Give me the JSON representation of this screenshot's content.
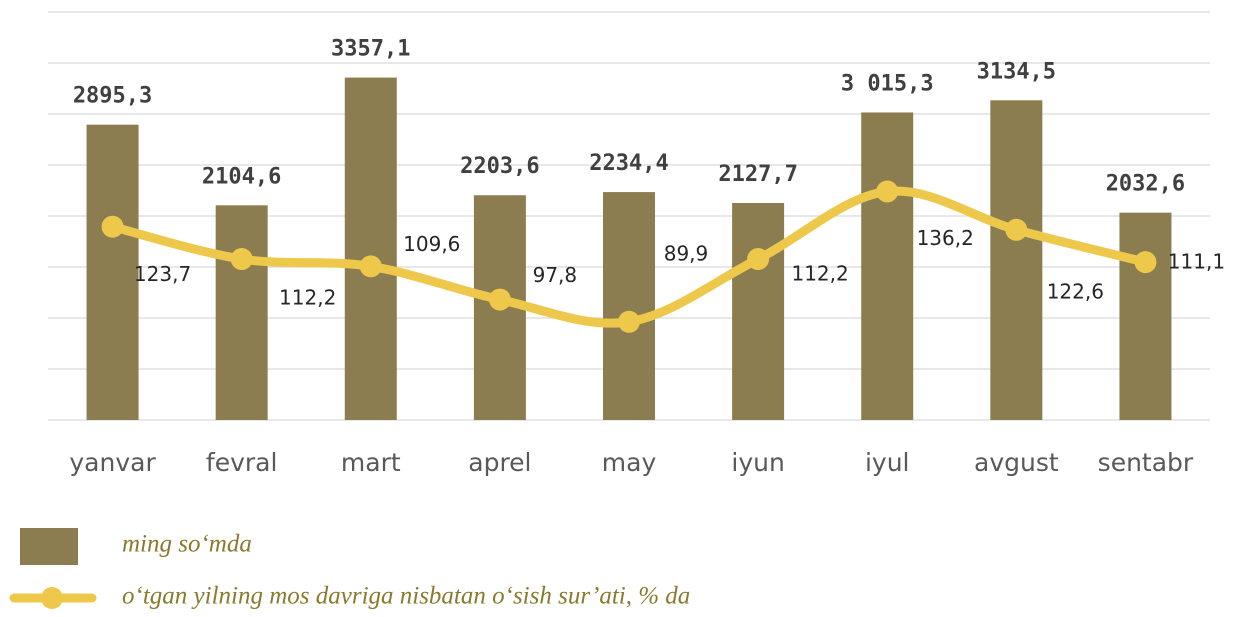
{
  "chart_data": {
    "type": "bar_line",
    "categories": [
      "yanvar",
      "fevral",
      "mart",
      "aprel",
      "may",
      "iyun",
      "iyul",
      "avgust",
      "sentabr"
    ],
    "series": [
      {
        "name": "ming so‘mda",
        "type": "bar",
        "color": "#8b7d50",
        "values": [
          2895.3,
          2104.6,
          3357.1,
          2203.6,
          2234.4,
          2127.7,
          3015.3,
          3134.5,
          2032.6
        ],
        "value_labels": [
          "2895,3",
          "2104,6",
          "3357,1",
          "2203,6",
          "2234,4",
          "2127,7",
          "3 015,3",
          "3134,5",
          "2032,6"
        ]
      },
      {
        "name": "o‘tgan yilning mos davriga nisbatan o‘sish sur’ati, % da",
        "type": "line",
        "color": "#edc84a",
        "axis": "y2",
        "values": [
          123.7,
          112.2,
          109.6,
          97.8,
          89.9,
          112.2,
          136.2,
          122.6,
          111.1
        ],
        "value_labels": [
          "123,7",
          "112,2",
          "109,6",
          "97,8",
          "89,9",
          "112,2",
          "136,2",
          "122,6",
          "111,1"
        ]
      }
    ],
    "ylim": [
      0,
      4000
    ],
    "yticks": [
      0,
      500,
      1000,
      1500,
      2000,
      2500,
      3000,
      3500,
      4000
    ],
    "y2lim": [
      55,
      200
    ],
    "grid": true
  }
}
